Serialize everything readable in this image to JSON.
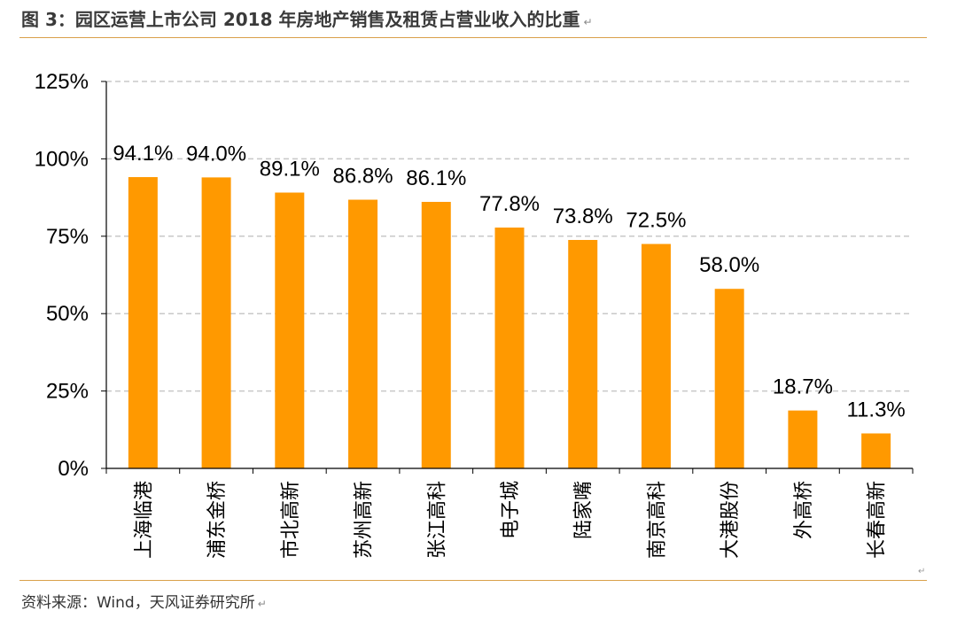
{
  "header": {
    "title": "图 3：园区运营上市公司 2018 年房地产销售及租赁占营业收入的比重",
    "mark": "↵"
  },
  "footer": {
    "source": "资料来源：Wind，天风证券研究所",
    "mark": "↵",
    "corner_mark": "↵"
  },
  "colors": {
    "bar": "#FF9900",
    "grid": "#c8c8c8",
    "axis": "#000000",
    "rule": "#d9a04a"
  },
  "chart_data": {
    "type": "bar",
    "categories": [
      "上海临港",
      "浦东金桥",
      "市北高新",
      "苏州高新",
      "张江高科",
      "电子城",
      "陆家嘴",
      "南京高科",
      "大港股份",
      "外高桥",
      "长春高新"
    ],
    "values": [
      94.1,
      94.0,
      89.1,
      86.8,
      86.1,
      77.8,
      73.8,
      72.5,
      58.0,
      18.7,
      11.3
    ],
    "data_labels": [
      "94.1%",
      "94.0%",
      "89.1%",
      "86.8%",
      "86.1%",
      "77.8%",
      "73.8%",
      "72.5%",
      "58.0%",
      "18.7%",
      "11.3%"
    ],
    "title": "",
    "xlabel": "",
    "ylabel": "",
    "ylim": [
      0,
      125
    ],
    "yticks": [
      0,
      25,
      50,
      75,
      100,
      125
    ],
    "ytick_labels": [
      "0%",
      "25%",
      "50%",
      "75%",
      "100%",
      "125%"
    ],
    "grid": "horizontal dashed",
    "legend": "none"
  }
}
